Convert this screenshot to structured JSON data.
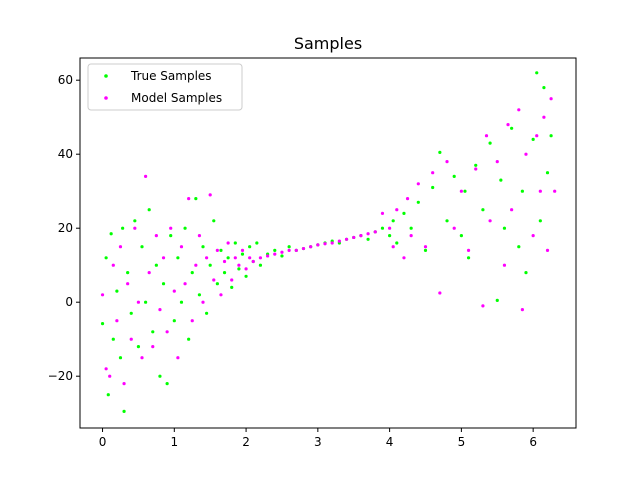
{
  "chart_data": {
    "type": "scatter",
    "title": "Samples",
    "xlabel": "",
    "ylabel": "",
    "xlim": [
      -0.314,
      6.597
    ],
    "ylim": [
      -34,
      66
    ],
    "x_ticks": [
      0,
      1,
      2,
      3,
      4,
      5,
      6
    ],
    "y_ticks": [
      -20,
      0,
      20,
      40,
      60
    ],
    "x_tick_labels": [
      "0",
      "1",
      "2",
      "3",
      "4",
      "5",
      "6"
    ],
    "y_tick_labels": [
      "−20",
      "0",
      "20",
      "40",
      "60"
    ],
    "grid": false,
    "legend_position": "top-left",
    "series": [
      {
        "name": "True Samples",
        "color": "#00ff00",
        "marker": "dot",
        "points": [
          [
            0.0,
            -5.8
          ],
          [
            0.05,
            12.0
          ],
          [
            0.08,
            -25.0
          ],
          [
            0.12,
            18.5
          ],
          [
            0.15,
            -10.0
          ],
          [
            0.2,
            3.0
          ],
          [
            0.25,
            -15.0
          ],
          [
            0.28,
            20.0
          ],
          [
            0.3,
            -29.5
          ],
          [
            0.35,
            8.0
          ],
          [
            0.4,
            -3.0
          ],
          [
            0.45,
            22.0
          ],
          [
            0.5,
            -12.0
          ],
          [
            0.55,
            15.0
          ],
          [
            0.6,
            0.0
          ],
          [
            0.65,
            25.0
          ],
          [
            0.7,
            -8.0
          ],
          [
            0.75,
            10.0
          ],
          [
            0.8,
            -20.0
          ],
          [
            0.85,
            5.0
          ],
          [
            0.9,
            -22.0
          ],
          [
            0.95,
            18.0
          ],
          [
            1.0,
            -5.0
          ],
          [
            1.05,
            12.0
          ],
          [
            1.1,
            0.0
          ],
          [
            1.15,
            20.0
          ],
          [
            1.2,
            -10.0
          ],
          [
            1.25,
            8.0
          ],
          [
            1.3,
            28.0
          ],
          [
            1.35,
            2.0
          ],
          [
            1.4,
            15.0
          ],
          [
            1.45,
            -3.0
          ],
          [
            1.5,
            10.0
          ],
          [
            1.55,
            22.0
          ],
          [
            1.6,
            5.0
          ],
          [
            1.65,
            14.0
          ],
          [
            1.7,
            8.0
          ],
          [
            1.75,
            12.0
          ],
          [
            1.8,
            4.0
          ],
          [
            1.85,
            16.0
          ],
          [
            1.9,
            9.0
          ],
          [
            1.95,
            13.0
          ],
          [
            2.0,
            7.0
          ],
          [
            2.05,
            15.0
          ],
          [
            2.1,
            11.0
          ],
          [
            2.15,
            16.0
          ],
          [
            2.2,
            10.0
          ],
          [
            2.3,
            13.0
          ],
          [
            2.4,
            14.0
          ],
          [
            2.5,
            12.5
          ],
          [
            2.6,
            15.0
          ],
          [
            2.7,
            14.0
          ],
          [
            2.8,
            14.5
          ],
          [
            2.9,
            15.0
          ],
          [
            3.0,
            15.5
          ],
          [
            3.1,
            16.0
          ],
          [
            3.2,
            16.5
          ],
          [
            3.3,
            16.0
          ],
          [
            3.4,
            17.0
          ],
          [
            3.5,
            17.5
          ],
          [
            3.6,
            18.0
          ],
          [
            3.7,
            17.0
          ],
          [
            3.8,
            19.0
          ],
          [
            3.9,
            20.0
          ],
          [
            4.0,
            18.0
          ],
          [
            4.05,
            22.0
          ],
          [
            4.1,
            16.0
          ],
          [
            4.2,
            24.0
          ],
          [
            4.3,
            20.0
          ],
          [
            4.4,
            27.0
          ],
          [
            4.5,
            14.0
          ],
          [
            4.6,
            31.0
          ],
          [
            4.7,
            40.5
          ],
          [
            4.8,
            22.0
          ],
          [
            4.9,
            34.0
          ],
          [
            5.0,
            18.0
          ],
          [
            5.05,
            30.0
          ],
          [
            5.1,
            12.0
          ],
          [
            5.2,
            37.0
          ],
          [
            5.3,
            25.0
          ],
          [
            5.4,
            43.0
          ],
          [
            5.5,
            0.5
          ],
          [
            5.55,
            33.0
          ],
          [
            5.6,
            20.0
          ],
          [
            5.7,
            47.0
          ],
          [
            5.8,
            15.0
          ],
          [
            5.85,
            30.0
          ],
          [
            5.9,
            8.0
          ],
          [
            6.0,
            44.0
          ],
          [
            6.05,
            62.0
          ],
          [
            6.1,
            22.0
          ],
          [
            6.15,
            58.0
          ],
          [
            6.2,
            35.0
          ],
          [
            6.25,
            45.0
          ]
        ]
      },
      {
        "name": "Model Samples",
        "color": "#ff00ff",
        "marker": "dot",
        "points": [
          [
            0.0,
            2.0
          ],
          [
            0.05,
            -18.0
          ],
          [
            0.1,
            -20.0
          ],
          [
            0.15,
            10.0
          ],
          [
            0.2,
            -5.0
          ],
          [
            0.25,
            15.0
          ],
          [
            0.3,
            -22.0
          ],
          [
            0.35,
            5.0
          ],
          [
            0.4,
            -10.0
          ],
          [
            0.45,
            20.0
          ],
          [
            0.5,
            0.0
          ],
          [
            0.55,
            -15.0
          ],
          [
            0.6,
            34.0
          ],
          [
            0.65,
            8.0
          ],
          [
            0.7,
            -12.0
          ],
          [
            0.75,
            18.0
          ],
          [
            0.8,
            -2.0
          ],
          [
            0.85,
            12.0
          ],
          [
            0.9,
            -8.0
          ],
          [
            0.95,
            20.0
          ],
          [
            1.0,
            3.0
          ],
          [
            1.05,
            -15.0
          ],
          [
            1.1,
            15.0
          ],
          [
            1.15,
            5.0
          ],
          [
            1.2,
            28.0
          ],
          [
            1.25,
            -5.0
          ],
          [
            1.3,
            10.0
          ],
          [
            1.35,
            18.0
          ],
          [
            1.4,
            0.0
          ],
          [
            1.45,
            12.0
          ],
          [
            1.5,
            29.0
          ],
          [
            1.55,
            6.0
          ],
          [
            1.6,
            14.0
          ],
          [
            1.65,
            2.0
          ],
          [
            1.7,
            11.0
          ],
          [
            1.75,
            16.0
          ],
          [
            1.8,
            6.0
          ],
          [
            1.85,
            12.0
          ],
          [
            1.9,
            10.0
          ],
          [
            1.95,
            14.0
          ],
          [
            2.0,
            9.0
          ],
          [
            2.05,
            12.0
          ],
          [
            2.1,
            11.0
          ],
          [
            2.2,
            12.0
          ],
          [
            2.3,
            12.5
          ],
          [
            2.4,
            13.0
          ],
          [
            2.5,
            13.5
          ],
          [
            2.6,
            14.0
          ],
          [
            2.7,
            14.0
          ],
          [
            2.8,
            14.5
          ],
          [
            2.9,
            15.0
          ],
          [
            3.0,
            15.5
          ],
          [
            3.1,
            15.8
          ],
          [
            3.2,
            16.0
          ],
          [
            3.3,
            16.5
          ],
          [
            3.4,
            17.0
          ],
          [
            3.5,
            17.5
          ],
          [
            3.6,
            18.0
          ],
          [
            3.7,
            18.5
          ],
          [
            3.8,
            19.0
          ],
          [
            3.9,
            24.0
          ],
          [
            4.0,
            20.0
          ],
          [
            4.05,
            15.0
          ],
          [
            4.1,
            25.0
          ],
          [
            4.2,
            12.0
          ],
          [
            4.25,
            28.0
          ],
          [
            4.3,
            18.0
          ],
          [
            4.4,
            32.0
          ],
          [
            4.5,
            15.0
          ],
          [
            4.6,
            35.0
          ],
          [
            4.7,
            2.5
          ],
          [
            4.8,
            38.0
          ],
          [
            4.9,
            20.0
          ],
          [
            5.0,
            30.0
          ],
          [
            5.1,
            14.0
          ],
          [
            5.2,
            36.0
          ],
          [
            5.3,
            -1.0
          ],
          [
            5.35,
            45.0
          ],
          [
            5.4,
            22.0
          ],
          [
            5.5,
            38.0
          ],
          [
            5.6,
            10.0
          ],
          [
            5.65,
            48.0
          ],
          [
            5.7,
            25.0
          ],
          [
            5.8,
            52.0
          ],
          [
            5.85,
            -2.0
          ],
          [
            5.9,
            40.0
          ],
          [
            6.0,
            18.0
          ],
          [
            6.05,
            45.0
          ],
          [
            6.1,
            30.0
          ],
          [
            6.15,
            50.0
          ],
          [
            6.2,
            14.0
          ],
          [
            6.25,
            55.0
          ],
          [
            6.3,
            30.0
          ]
        ]
      }
    ]
  }
}
